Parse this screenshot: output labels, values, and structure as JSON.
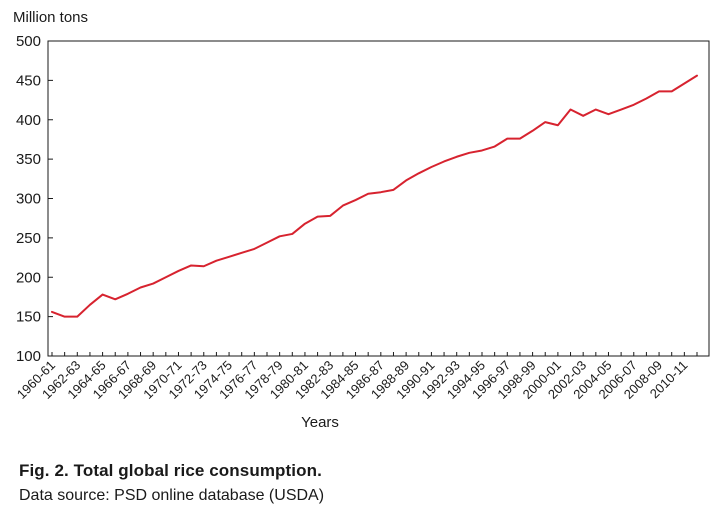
{
  "figure": {
    "caption_title": "Fig. 2. Total global rice consumption.",
    "caption_source": "Data source: PSD online database (USDA)"
  },
  "chart_data": {
    "type": "line",
    "title": "",
    "xlabel": "Years",
    "ylabel": "Million tons",
    "ylim": [
      100,
      500
    ],
    "yticks": [
      100,
      150,
      200,
      250,
      300,
      350,
      400,
      450,
      500
    ],
    "grid": false,
    "line_color": "#d7232f",
    "x_tick_labels": [
      "1960-61",
      "1962-63",
      "1964-65",
      "1966-67",
      "1968-69",
      "1970-71",
      "1972-73",
      "1974-75",
      "1976-77",
      "1978-79",
      "1980-81",
      "1982-83",
      "1984-85",
      "1986-87",
      "1988-89",
      "1990-91",
      "1992-93",
      "1994-95",
      "1996-97",
      "1998-99",
      "2000-01",
      "2002-03",
      "2004-05",
      "2006-07",
      "2008-09",
      "2010-11"
    ],
    "x": [
      "1960-61",
      "1961-62",
      "1962-63",
      "1963-64",
      "1964-65",
      "1965-66",
      "1966-67",
      "1967-68",
      "1968-69",
      "1969-70",
      "1970-71",
      "1971-72",
      "1972-73",
      "1973-74",
      "1974-75",
      "1975-76",
      "1976-77",
      "1977-78",
      "1978-79",
      "1979-80",
      "1980-81",
      "1981-82",
      "1982-83",
      "1983-84",
      "1984-85",
      "1985-86",
      "1986-87",
      "1987-88",
      "1988-89",
      "1989-90",
      "1990-91",
      "1991-92",
      "1992-93",
      "1993-94",
      "1994-95",
      "1995-96",
      "1996-97",
      "1997-98",
      "1998-99",
      "1999-00",
      "2000-01",
      "2001-02",
      "2002-03",
      "2003-04",
      "2004-05",
      "2005-06",
      "2006-07",
      "2007-08",
      "2008-09",
      "2009-10",
      "2010-11",
      "2011-12"
    ],
    "series": [
      {
        "values": [
          156,
          150,
          150,
          165,
          178,
          172,
          179,
          187,
          192,
          200,
          208,
          215,
          214,
          221,
          226,
          231,
          236,
          244,
          252,
          255,
          268,
          277,
          278,
          291,
          298,
          306,
          308,
          311,
          323,
          332,
          340,
          347,
          353,
          358,
          361,
          366,
          376,
          376,
          386,
          397,
          393,
          413,
          405,
          413,
          407,
          413,
          419,
          427,
          436,
          436,
          446,
          456
        ]
      }
    ]
  }
}
